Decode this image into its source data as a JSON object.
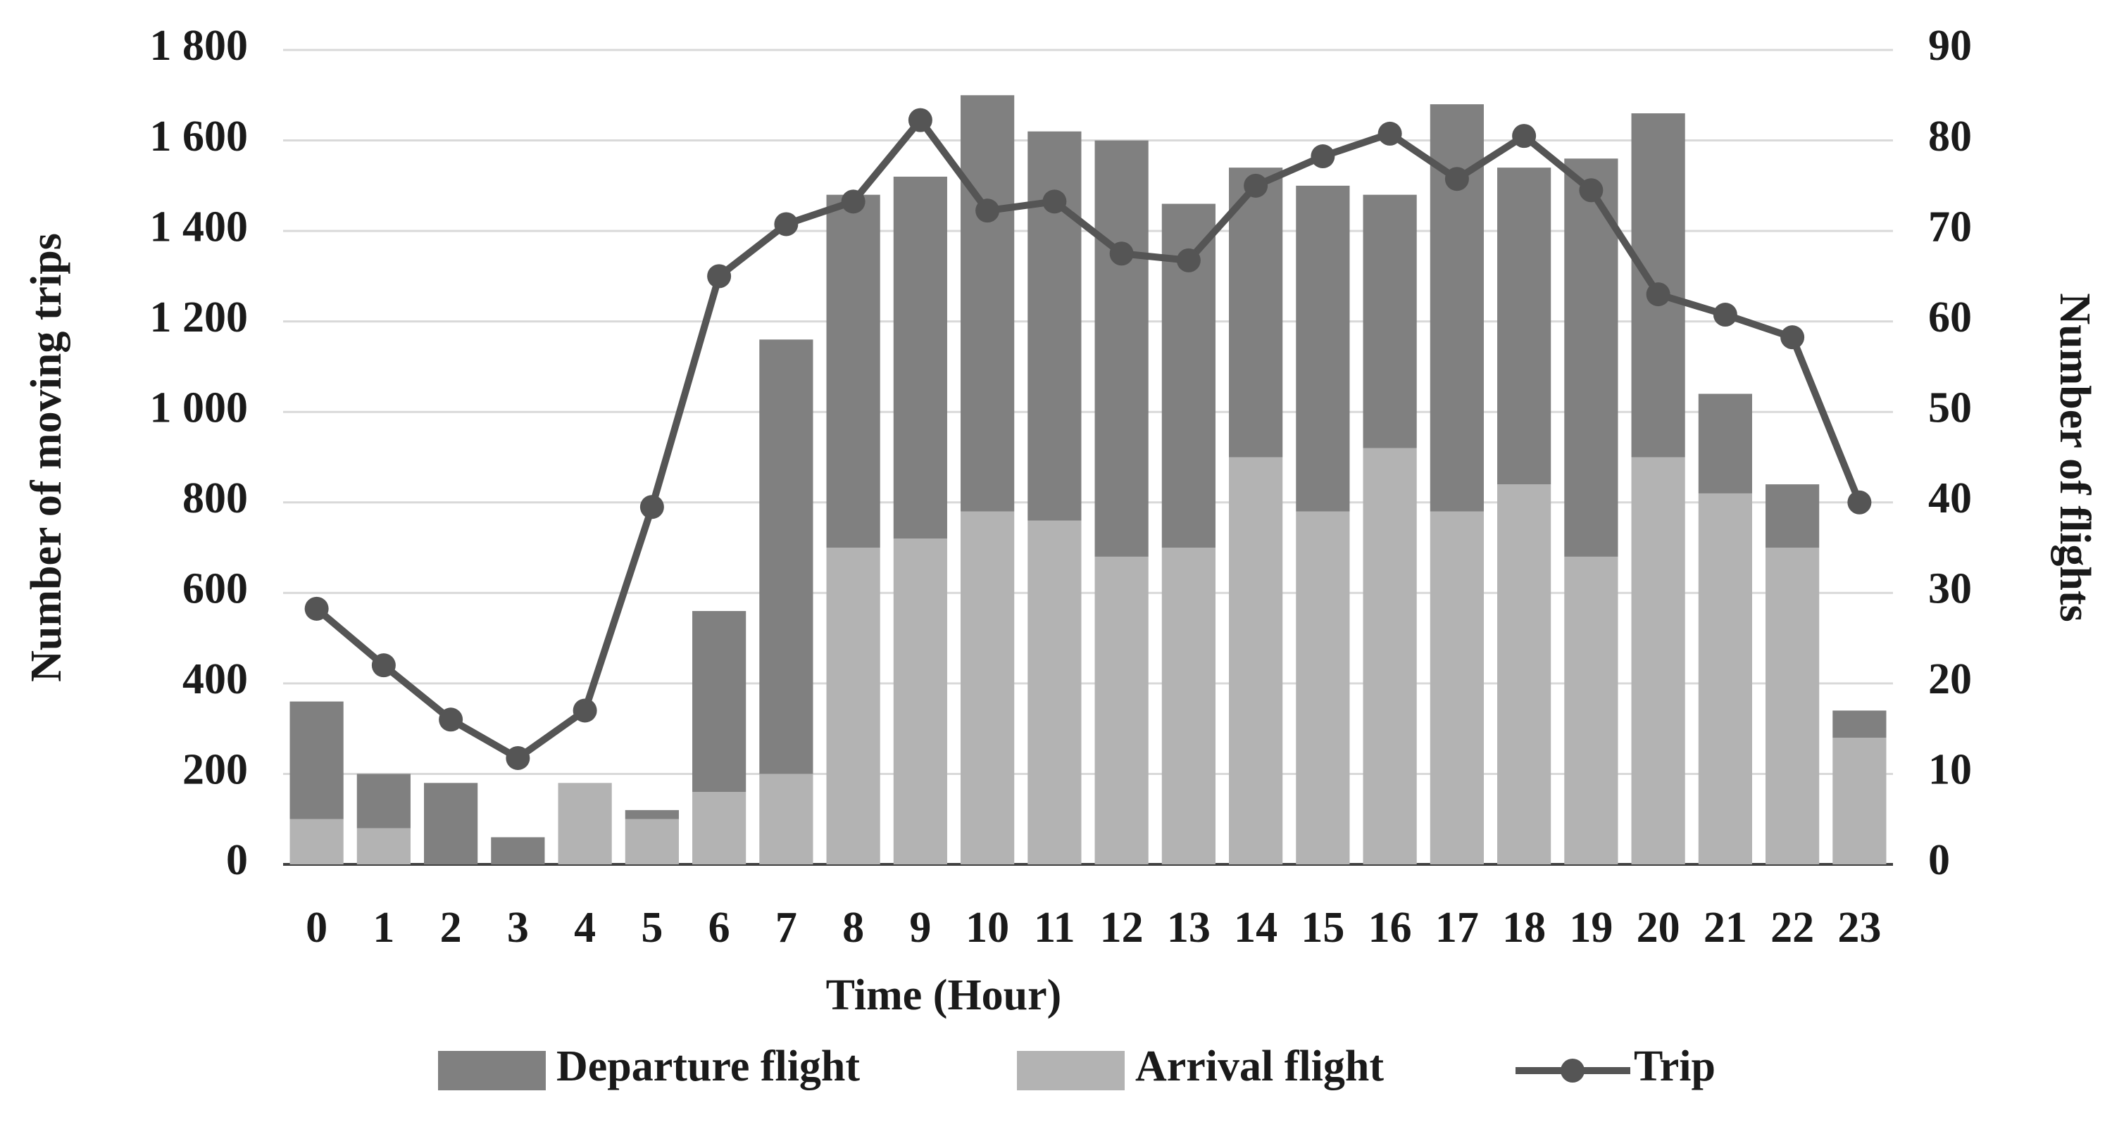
{
  "chart_data": {
    "type": "bar-line",
    "x_label": "Time (Hour)",
    "y_label": "Number of moving trips",
    "y2_label": "Number of flights",
    "categories": [
      "0",
      "1",
      "2",
      "3",
      "4",
      "5",
      "6",
      "7",
      "8",
      "9",
      "10",
      "11",
      "12",
      "13",
      "14",
      "15",
      "16",
      "17",
      "18",
      "19",
      "20",
      "21",
      "22",
      "23"
    ],
    "series": [
      {
        "name": "Departure flight",
        "type": "bar",
        "axis": "y2",
        "color": "#808080",
        "values": [
          13,
          6,
          9,
          3,
          0,
          1,
          20,
          48,
          39,
          40,
          46,
          43,
          46,
          38,
          32,
          36,
          28,
          45,
          35,
          44,
          38,
          11,
          7,
          3
        ]
      },
      {
        "name": "Arrival flight",
        "type": "bar",
        "axis": "y2",
        "color": "#b3b3b3",
        "values": [
          5,
          4,
          0,
          0,
          9,
          5,
          8,
          10,
          35,
          36,
          39,
          38,
          34,
          35,
          45,
          39,
          46,
          39,
          42,
          34,
          45,
          41,
          35,
          14
        ]
      },
      {
        "name": "Trip",
        "type": "line",
        "color": "#555555",
        "values": [
          565,
          440,
          320,
          235,
          340,
          790,
          1300,
          1415,
          1465,
          1645,
          1445,
          1465,
          1350,
          1335,
          1500,
          1565,
          1615,
          1515,
          1610,
          1490,
          1260,
          1215,
          1165,
          800
        ]
      }
    ],
    "ylim": [
      0,
      1800
    ],
    "yticks": [
      0,
      200,
      400,
      600,
      800,
      {
        "value": 1000,
        "label": "1 000"
      },
      {
        "value": 1200,
        "label": "1 200"
      },
      {
        "value": 1400,
        "label": "1 400"
      },
      {
        "value": 1600,
        "label": "1 600"
      },
      {
        "value": 1800,
        "label": "1 800"
      }
    ],
    "y2lim": [
      0,
      90
    ],
    "y2ticks": [
      0,
      10,
      20,
      30,
      40,
      50,
      60,
      70,
      80,
      90
    ],
    "grid": true
  }
}
